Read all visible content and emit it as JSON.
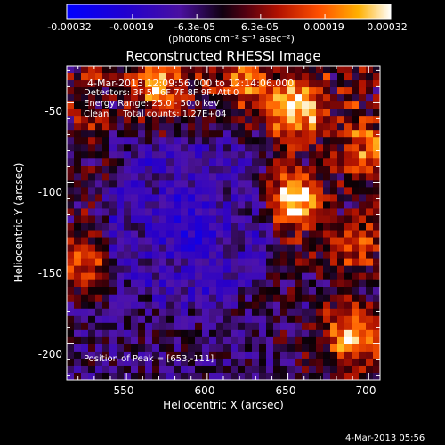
{
  "chart_data": {
    "type": "heatmap",
    "title": "Reconstructed RHESSI Image",
    "xlabel": "Heliocentric X (arcsec)",
    "ylabel": "Heliocentric Y (arcsec)",
    "xlim": [
      513,
      707
    ],
    "ylim": [
      -223,
      -27
    ],
    "x_ticks": [
      550,
      600,
      650,
      700
    ],
    "y_ticks": [
      -50,
      -100,
      -150,
      -200
    ],
    "colorbar": {
      "ticks": [
        "-0.00032",
        "-0.00019",
        "-6.3e-05",
        "6.3e-05",
        "0.00019",
        "0.00032"
      ],
      "unit_text": "(photons cm⁻² s⁻¹ asec⁻²)",
      "range": [
        -0.00032,
        0.00032
      ]
    },
    "annotations": [
      "4-Mar-2013 12:09:56.000 to 12:14:06.000",
      "Detectors: 3F 5F 6F 7F 8F 9F, Att 0",
      "Energy Range: 25.0 - 50.0 keV",
      "Clean     Total counts: 1.27E+04"
    ],
    "peak_label": "Position of Peak = [653,-111]",
    "peak": [
      653,
      -111
    ],
    "bright_sources": [
      {
        "x": 653,
        "y": -111,
        "level": 1.0
      },
      {
        "x": 690,
        "y": -195,
        "level": 0.8
      },
      {
        "x": 570,
        "y": -38,
        "level": 0.7
      },
      {
        "x": 655,
        "y": -55,
        "level": 0.75
      },
      {
        "x": 625,
        "y": -35,
        "level": 0.6
      },
      {
        "x": 520,
        "y": -150,
        "level": 0.55
      },
      {
        "x": 700,
        "y": -80,
        "level": 0.55
      },
      {
        "x": 690,
        "y": -140,
        "level": 0.5
      }
    ],
    "dim_region": {
      "x": 588,
      "y": -125,
      "level": -0.45
    }
  },
  "footer": {
    "timestamp": "4-Mar-2013 05:56"
  }
}
